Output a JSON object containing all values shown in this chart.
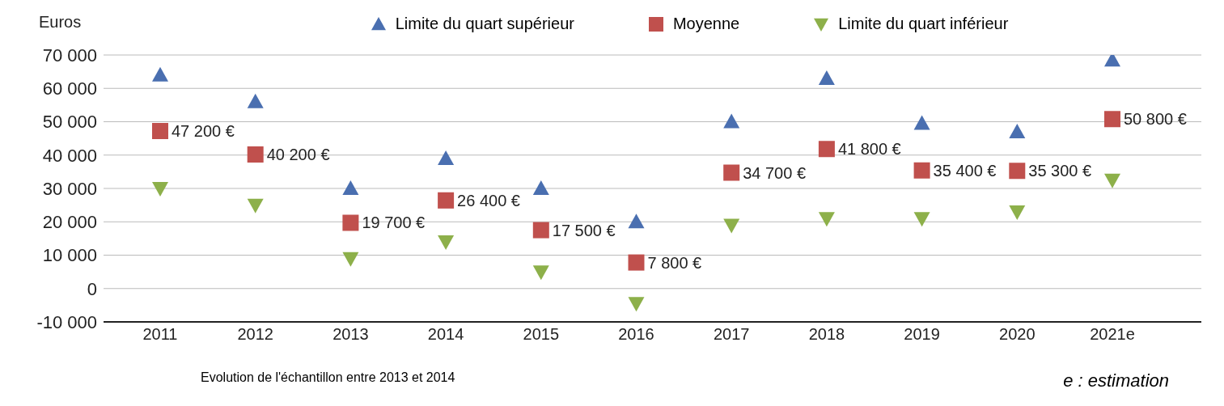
{
  "chart_data": {
    "type": "scatter",
    "ylabel": "Euros",
    "categories": [
      "2011",
      "2012",
      "2013",
      "2014",
      "2015",
      "2016",
      "2017",
      "2018",
      "2019",
      "2020",
      "2021e"
    ],
    "series": [
      {
        "name": "Limite du quart supérieur",
        "color": "#4a6fb0",
        "marker": "triangle",
        "values": [
          64000,
          56000,
          30000,
          39000,
          30000,
          20000,
          50000,
          63000,
          49500,
          47000,
          68500
        ]
      },
      {
        "name": "Moyenne",
        "color": "#c0504d",
        "marker": "square",
        "values": [
          47200,
          40200,
          19700,
          26400,
          17500,
          7800,
          34700,
          41800,
          35400,
          35300,
          50800
        ],
        "value_labels": [
          "47 200 €",
          "40 200 €",
          "19 700 €",
          "26 400 €",
          "17 500 €",
          "7 800 €",
          "34 700 €",
          "41 800 €",
          "35 400 €",
          "35 300 €",
          "50 800 €"
        ]
      },
      {
        "name": "Limite du quart inférieur",
        "color": "#8db04a",
        "marker": "triangle-down",
        "values": [
          30000,
          25000,
          9000,
          14000,
          5000,
          -4500,
          19000,
          21000,
          21000,
          23000,
          32500
        ]
      }
    ],
    "ylim": [
      -10000,
      70000
    ],
    "yticks": [
      {
        "value": -10000,
        "label": "-10 000"
      },
      {
        "value": 0,
        "label": "0"
      },
      {
        "value": 10000,
        "label": "10 000"
      },
      {
        "value": 20000,
        "label": "20 000"
      },
      {
        "value": 30000,
        "label": "30 000"
      },
      {
        "value": 40000,
        "label": "40 000"
      },
      {
        "value": 50000,
        "label": "50 000"
      },
      {
        "value": 60000,
        "label": "60 000"
      },
      {
        "value": 70000,
        "label": "70 000"
      }
    ],
    "grid": "y",
    "legend": "top",
    "annotations": [
      "Evolution de l'échantillon entre 2013 et 2014",
      "e : estimation"
    ]
  }
}
